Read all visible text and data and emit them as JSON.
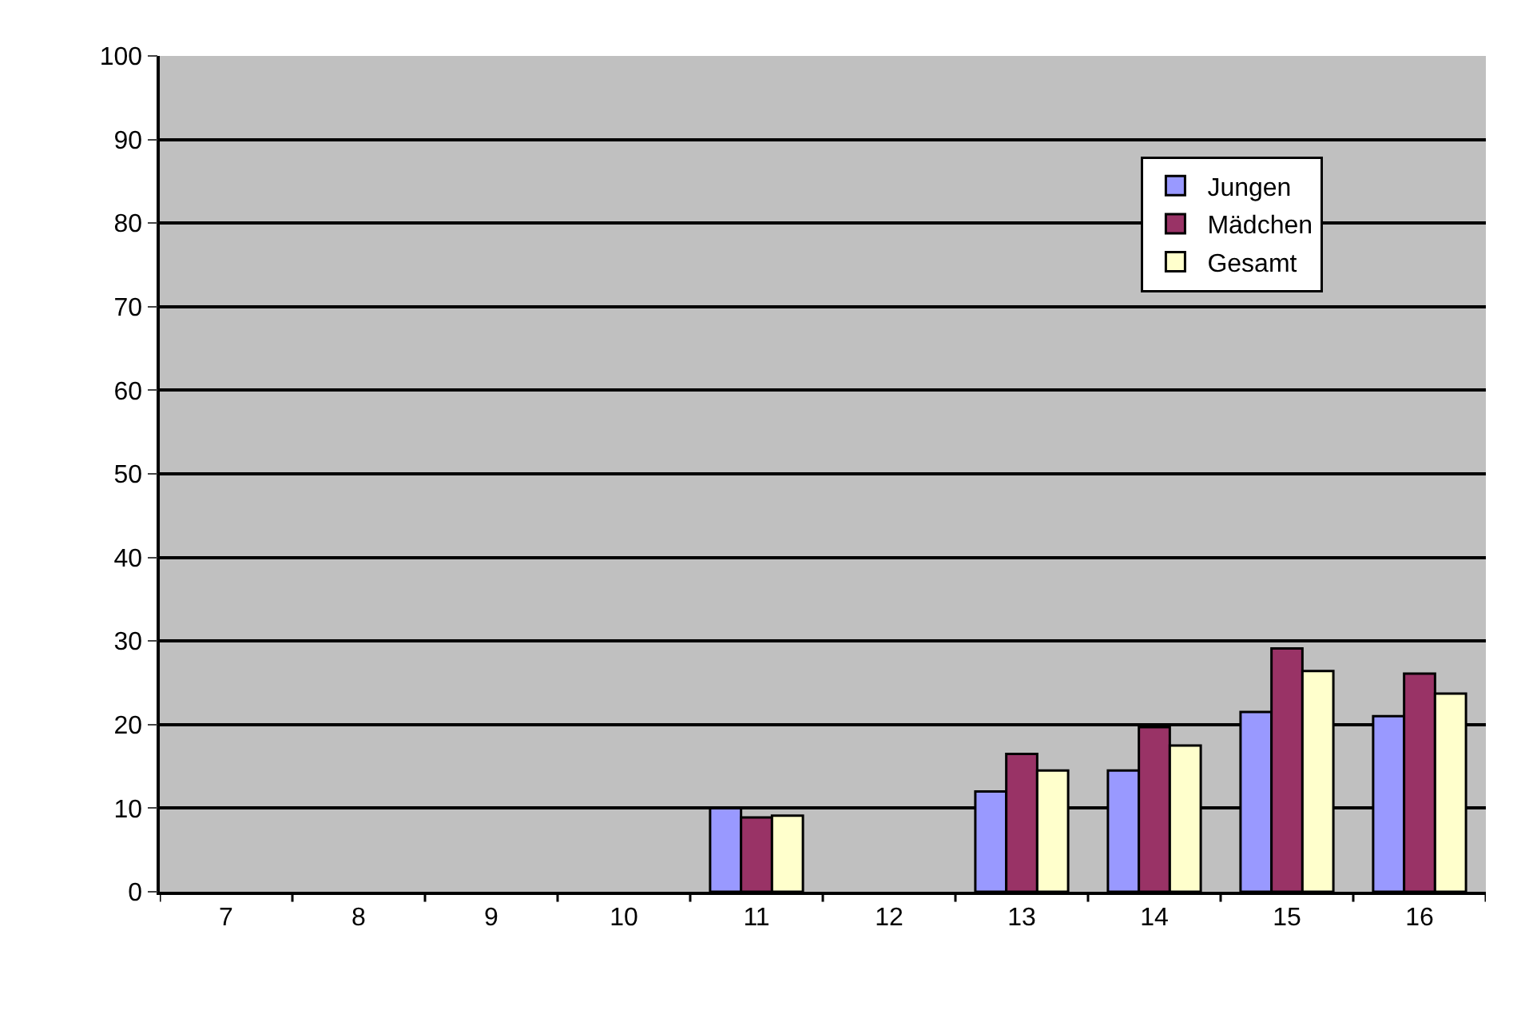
{
  "chart_data": {
    "type": "bar",
    "categories": [
      "7",
      "8",
      "9",
      "10",
      "11",
      "12",
      "13",
      "14",
      "15",
      "16"
    ],
    "series": [
      {
        "name": "Jungen",
        "color": "#9999ff",
        "values": [
          null,
          null,
          null,
          null,
          10,
          null,
          12,
          14.5,
          21.5,
          21
        ]
      },
      {
        "name": "Mädchen",
        "color": "#993366",
        "values": [
          null,
          null,
          null,
          null,
          8.9,
          null,
          16.5,
          19.7,
          29.1,
          26.1
        ]
      },
      {
        "name": "Gesamt",
        "color": "#ffffcc",
        "values": [
          null,
          null,
          null,
          null,
          9.1,
          null,
          14.5,
          17.5,
          26.4,
          23.7
        ]
      }
    ],
    "ylim": [
      0,
      100
    ],
    "yticks": [
      0,
      10,
      20,
      30,
      40,
      50,
      60,
      70,
      80,
      90,
      100
    ],
    "grid": "y",
    "legend": "top right"
  }
}
